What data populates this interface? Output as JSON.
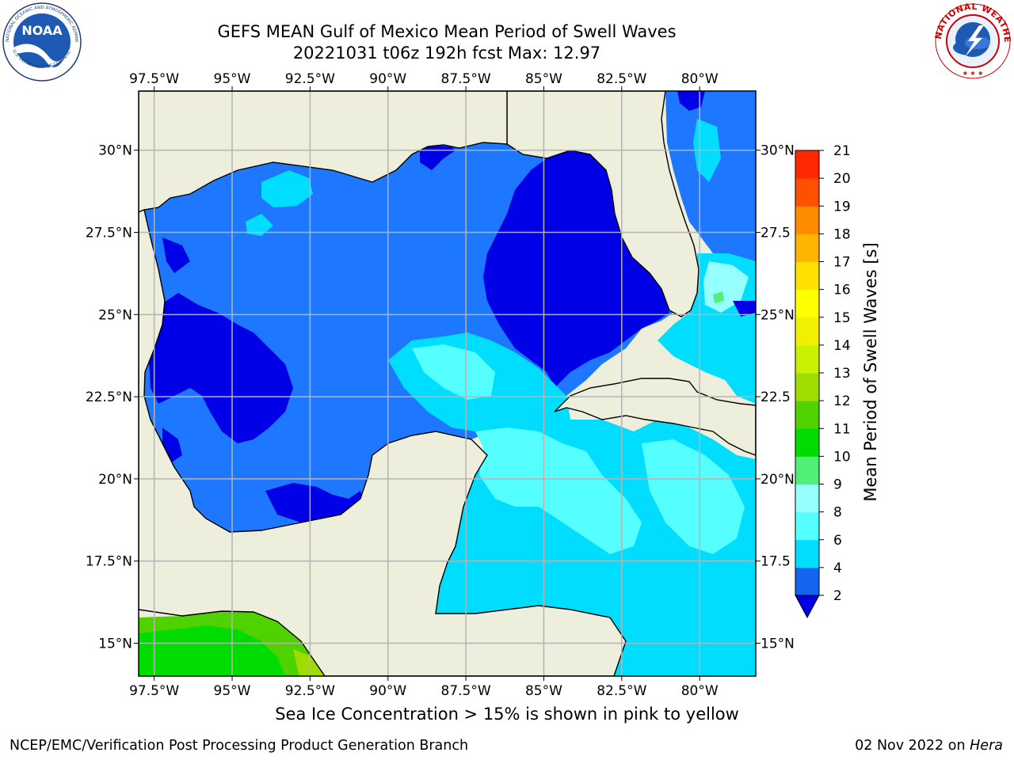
{
  "title": {
    "line1": "GEFS MEAN Gulf of Mexico Mean Period of Swell Waves",
    "line2": "20221031 t06z 192h fcst   Max: 12.97"
  },
  "logos": {
    "left": {
      "name": "noaa-logo",
      "text": "NOAA"
    },
    "right": {
      "name": "national-weather-service-logo",
      "text": "NATIONAL WEATHER SERVICE"
    }
  },
  "map": {
    "lon_range": [
      -98.0,
      -78.2
    ],
    "lat_range": [
      14.0,
      31.8
    ],
    "lon_ticks": [
      {
        "value": -97.5,
        "label": "97.5°W"
      },
      {
        "value": -95.0,
        "label": "95°W"
      },
      {
        "value": -92.5,
        "label": "92.5°W"
      },
      {
        "value": -90.0,
        "label": "90°W"
      },
      {
        "value": -87.5,
        "label": "87.5°W"
      },
      {
        "value": -85.0,
        "label": "85°W"
      },
      {
        "value": -82.5,
        "label": "82.5°W"
      },
      {
        "value": -80.0,
        "label": "80°W"
      }
    ],
    "lat_ticks_left": [
      {
        "value": 30.0,
        "label": "30°N"
      },
      {
        "value": 27.5,
        "label": "27.5°N"
      },
      {
        "value": 25.0,
        "label": "25°N"
      },
      {
        "value": 22.5,
        "label": "22.5°N"
      },
      {
        "value": 20.0,
        "label": "20°N"
      },
      {
        "value": 17.5,
        "label": "17.5°N"
      },
      {
        "value": 15.0,
        "label": "15°N"
      }
    ],
    "lat_ticks_right": [
      {
        "value": 30.0,
        "label": "30°N"
      },
      {
        "value": 27.5,
        "label": "27.5"
      },
      {
        "value": 25.0,
        "label": "25°N"
      },
      {
        "value": 22.5,
        "label": "22.5"
      },
      {
        "value": 20.0,
        "label": "20°N"
      },
      {
        "value": 17.5,
        "label": "17.5"
      },
      {
        "value": 15.0,
        "label": "15°N"
      }
    ],
    "land_color": "#eeeedc",
    "grid_color": "#b4b4b4"
  },
  "colorbar": {
    "label": "Mean Period of Swell Waves [s]",
    "ticks": [
      "2",
      "4",
      "6",
      "8",
      "9",
      "10",
      "11",
      "12",
      "13",
      "14",
      "15",
      "16",
      "17",
      "18",
      "19",
      "20",
      "21"
    ],
    "colors": [
      "#1464f0",
      "#00ddff",
      "#55ffff",
      "#96ffff",
      "#50f078",
      "#00dc00",
      "#50d200",
      "#a0dc00",
      "#c8f000",
      "#f0f000",
      "#ffff00",
      "#ffe000",
      "#ffb400",
      "#ff8c00",
      "#ff5000",
      "#ff2800"
    ],
    "under_color": "#0000e6"
  },
  "footer": {
    "note": "Sea Ice Concentration > 15% is shown in pink to yellow",
    "left": "NCEP/EMC/Verification Post Processing Product Generation Branch",
    "right_date": "02 Nov 2022 on",
    "right_host": "Hera"
  }
}
